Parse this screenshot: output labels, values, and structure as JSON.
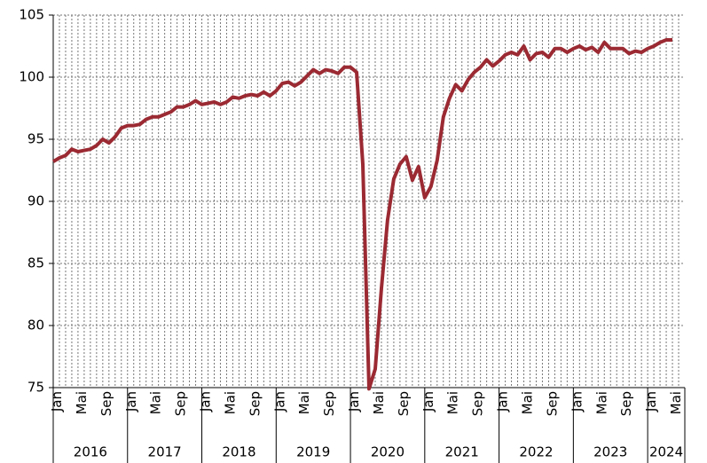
{
  "chart_data": {
    "type": "line",
    "categories": [
      "Jan",
      null,
      null,
      null,
      "Mai",
      null,
      null,
      null,
      "Sep",
      null,
      null,
      null,
      "Jan",
      null,
      null,
      null,
      "Mai",
      null,
      null,
      null,
      "Sep",
      null,
      null,
      null,
      "Jan",
      null,
      null,
      null,
      "Mai",
      null,
      null,
      null,
      "Sep",
      null,
      null,
      null,
      "Jan",
      null,
      null,
      null,
      "Mai",
      null,
      null,
      null,
      "Sep",
      null,
      null,
      null,
      "Jan",
      null,
      null,
      null,
      "Mai",
      null,
      null,
      null,
      "Sep",
      null,
      null,
      null,
      "Jan",
      null,
      null,
      null,
      "Mai",
      null,
      null,
      null,
      "Sep",
      null,
      null,
      null,
      "Jan",
      null,
      null,
      null,
      "Mai",
      null,
      null,
      null,
      "Sep",
      null,
      null,
      null,
      "Jan",
      null,
      null,
      null,
      "Mai",
      null,
      null,
      null,
      "Sep",
      null,
      null,
      null,
      "Jan",
      null,
      null,
      null,
      "Mai",
      null
    ],
    "years": [
      "2016",
      "2017",
      "2018",
      "2019",
      "2020",
      "2021",
      "2022",
      "2023",
      "2024"
    ],
    "series": [
      {
        "color": "#9b2a33",
        "values": [
          93.2,
          93.5,
          93.7,
          94.2,
          94.0,
          94.1,
          94.2,
          94.5,
          95.0,
          94.7,
          95.2,
          95.9,
          96.1,
          96.1,
          96.2,
          96.6,
          96.8,
          96.8,
          97.0,
          97.2,
          97.6,
          97.6,
          97.8,
          98.1,
          97.8,
          97.9,
          98.0,
          97.8,
          98.0,
          98.4,
          98.3,
          98.5,
          98.6,
          98.5,
          98.8,
          98.5,
          98.9,
          99.5,
          99.6,
          99.3,
          99.6,
          100.1,
          100.6,
          100.3,
          100.6,
          100.5,
          100.3,
          100.8,
          100.8,
          100.4,
          93.0,
          74.9,
          76.5,
          83.0,
          88.5,
          91.8,
          93.0,
          93.6,
          91.7,
          92.8,
          90.3,
          91.2,
          93.3,
          96.8,
          98.3,
          99.4,
          98.9,
          99.8,
          100.4,
          100.8,
          101.4,
          100.9,
          101.3,
          101.8,
          102.0,
          101.8,
          102.5,
          101.4,
          101.9,
          102.0,
          101.6,
          102.3,
          102.3,
          102.0,
          102.3,
          102.5,
          102.2,
          102.4,
          102.0,
          102.8,
          102.3,
          102.3,
          102.3,
          101.9,
          102.1,
          102.0,
          102.3,
          102.5,
          102.8,
          103.0,
          103.0,
          null
        ]
      }
    ],
    "ylim": [
      75,
      105
    ],
    "yticks": [
      75,
      80,
      85,
      90,
      95,
      100,
      105
    ],
    "grid": true
  }
}
